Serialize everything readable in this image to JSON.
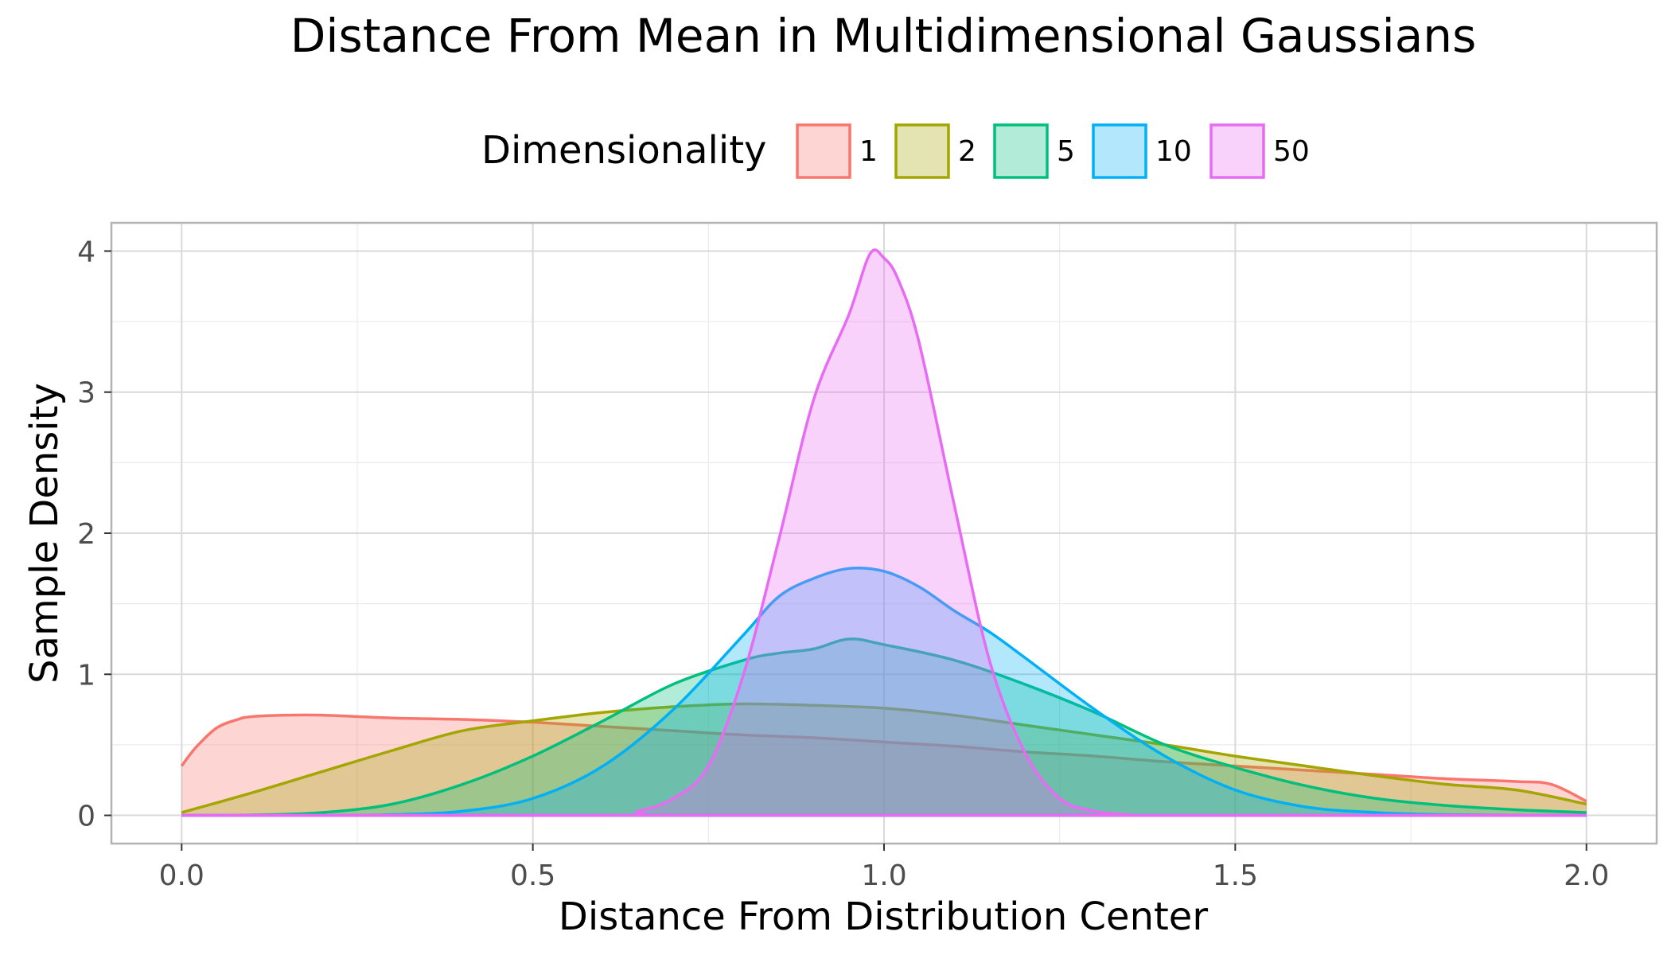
{
  "chart_data": {
    "type": "area",
    "title": "Distance From Mean in Multidimensional Gaussians",
    "xlabel": "Distance From Distribution Center",
    "ylabel": "Sample Density",
    "xlim": [
      -0.1,
      2.1
    ],
    "ylim": [
      -0.2,
      4.2
    ],
    "x_ticks": [
      0.0,
      0.5,
      1.0,
      1.5,
      2.0
    ],
    "x_tick_labels": [
      "0.0",
      "0.5",
      "1.0",
      "1.5",
      "2.0"
    ],
    "y_ticks": [
      0,
      1,
      2,
      3,
      4
    ],
    "y_tick_labels": [
      "0",
      "1",
      "2",
      "3",
      "4"
    ],
    "grid": true,
    "legend": {
      "title": "Dimensionality",
      "placement": "top"
    },
    "series": [
      {
        "name": "1",
        "color": "#F8766D",
        "x": [
          0.0,
          0.02,
          0.05,
          0.08,
          0.1,
          0.15,
          0.2,
          0.3,
          0.4,
          0.5,
          0.6,
          0.7,
          0.8,
          0.9,
          1.0,
          1.1,
          1.2,
          1.3,
          1.4,
          1.5,
          1.6,
          1.7,
          1.8,
          1.9,
          1.95,
          2.0
        ],
        "y": [
          0.35,
          0.48,
          0.62,
          0.68,
          0.7,
          0.71,
          0.71,
          0.69,
          0.68,
          0.66,
          0.63,
          0.6,
          0.57,
          0.55,
          0.52,
          0.49,
          0.45,
          0.42,
          0.38,
          0.35,
          0.32,
          0.29,
          0.26,
          0.24,
          0.22,
          0.1
        ]
      },
      {
        "name": "2",
        "color": "#A3A500",
        "x": [
          0.0,
          0.1,
          0.2,
          0.3,
          0.4,
          0.5,
          0.6,
          0.7,
          0.8,
          0.9,
          1.0,
          1.1,
          1.2,
          1.3,
          1.4,
          1.5,
          1.6,
          1.7,
          1.8,
          1.9,
          2.0
        ],
        "y": [
          0.02,
          0.16,
          0.31,
          0.46,
          0.6,
          0.67,
          0.73,
          0.77,
          0.79,
          0.78,
          0.76,
          0.71,
          0.64,
          0.57,
          0.5,
          0.42,
          0.35,
          0.28,
          0.22,
          0.18,
          0.08
        ]
      },
      {
        "name": "5",
        "color": "#00BF7D",
        "x": [
          0.0,
          0.1,
          0.2,
          0.3,
          0.4,
          0.5,
          0.6,
          0.7,
          0.8,
          0.85,
          0.9,
          0.95,
          1.0,
          1.1,
          1.2,
          1.3,
          1.4,
          1.5,
          1.6,
          1.7,
          1.8,
          1.9,
          2.0
        ],
        "y": [
          0.0,
          0.003,
          0.02,
          0.08,
          0.22,
          0.42,
          0.67,
          0.93,
          1.1,
          1.15,
          1.18,
          1.25,
          1.21,
          1.1,
          0.93,
          0.73,
          0.5,
          0.34,
          0.21,
          0.12,
          0.07,
          0.04,
          0.02
        ]
      },
      {
        "name": "10",
        "color": "#00B0F6",
        "x": [
          0.0,
          0.2,
          0.3,
          0.4,
          0.5,
          0.6,
          0.7,
          0.8,
          0.85,
          0.9,
          0.95,
          1.0,
          1.05,
          1.1,
          1.15,
          1.2,
          1.3,
          1.4,
          1.5,
          1.6,
          1.7,
          1.8,
          2.0
        ],
        "y": [
          0.0,
          0.0,
          0.005,
          0.03,
          0.12,
          0.35,
          0.75,
          1.28,
          1.55,
          1.68,
          1.75,
          1.73,
          1.62,
          1.45,
          1.3,
          1.12,
          0.75,
          0.42,
          0.18,
          0.06,
          0.02,
          0.005,
          0.0
        ]
      },
      {
        "name": "50",
        "color": "#E76BF3",
        "x": [
          0.0,
          0.6,
          0.65,
          0.7,
          0.75,
          0.8,
          0.85,
          0.9,
          0.95,
          0.98,
          1.0,
          1.02,
          1.05,
          1.1,
          1.15,
          1.2,
          1.25,
          1.3,
          1.35,
          1.4,
          2.0
        ],
        "y": [
          0.0,
          0.0,
          0.03,
          0.12,
          0.35,
          1.0,
          1.95,
          2.95,
          3.55,
          3.98,
          3.95,
          3.8,
          3.35,
          2.2,
          1.1,
          0.45,
          0.12,
          0.03,
          0.005,
          0.0,
          0.0
        ]
      }
    ]
  }
}
